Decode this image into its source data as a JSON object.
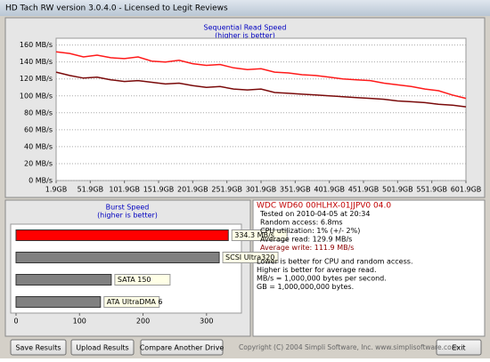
{
  "window": {
    "title": "HD Tach RW version 3.0.4.0 - Licensed to Legit Reviews"
  },
  "chart_data": [
    {
      "type": "line",
      "title": "Sequential Read Speed",
      "subtitle": "(higher is better)",
      "x": [
        1.9,
        21.9,
        41.9,
        61.9,
        81.9,
        101.9,
        121.9,
        141.9,
        161.9,
        181.9,
        201.9,
        221.9,
        241.9,
        261.9,
        281.9,
        301.9,
        321.9,
        341.9,
        361.9,
        381.9,
        401.9,
        421.9,
        441.9,
        461.9,
        481.9,
        501.9,
        521.9,
        541.9,
        561.9,
        581.9,
        601.9
      ],
      "series": [
        {
          "color": "#ff1a1a",
          "values": [
            152,
            150,
            146,
            148,
            145,
            144,
            146,
            141,
            140,
            142,
            138,
            136,
            137,
            133,
            131,
            132,
            128,
            127,
            125,
            124,
            122,
            120,
            119,
            118,
            115,
            113,
            111,
            108,
            106,
            101,
            97
          ]
        },
        {
          "color": "#7a0a0a",
          "values": [
            128,
            124,
            121,
            122,
            119,
            117,
            118,
            116,
            114,
            115,
            112,
            110,
            111,
            108,
            107,
            108,
            104,
            103,
            102,
            101,
            100,
            99,
            98,
            97,
            96,
            94,
            93,
            92,
            90,
            89,
            87
          ]
        }
      ],
      "xlim": [
        1.9,
        601.9
      ],
      "xticks": [
        {
          "value": 1.9,
          "label": "1.9GB"
        },
        {
          "value": 51.9,
          "label": "51.9GB"
        },
        {
          "value": 101.9,
          "label": "101.9GB"
        },
        {
          "value": 151.9,
          "label": "151.9GB"
        },
        {
          "value": 201.9,
          "label": "201.9GB"
        },
        {
          "value": 251.9,
          "label": "251.9GB"
        },
        {
          "value": 301.9,
          "label": "301.9GB"
        },
        {
          "value": 351.9,
          "label": "351.9GB"
        },
        {
          "value": 401.9,
          "label": "401.9GB"
        },
        {
          "value": 451.9,
          "label": "451.9GB"
        },
        {
          "value": 501.9,
          "label": "501.9GB"
        },
        {
          "value": 551.9,
          "label": "551.9GB"
        },
        {
          "value": 601.9,
          "label": "601.9GB"
        }
      ],
      "ylim": [
        0,
        168
      ],
      "yticks": [
        {
          "value": 0,
          "label": "0 MB/s"
        },
        {
          "value": 20,
          "label": "20 MB/s"
        },
        {
          "value": 40,
          "label": "40 MB/s"
        },
        {
          "value": 60,
          "label": "60 MB/s"
        },
        {
          "value": 80,
          "label": "80 MB/s"
        },
        {
          "value": 100,
          "label": "100 MB/s"
        },
        {
          "value": 120,
          "label": "120 MB/s"
        },
        {
          "value": 140,
          "label": "140 MB/s"
        },
        {
          "value": 160,
          "label": "160 MB/s"
        }
      ],
      "grid": true
    },
    {
      "type": "hbar",
      "title": "Burst Speed",
      "subtitle": "(higher is better)",
      "categories": [
        null,
        "SCSI Ultra320",
        "SATA 150",
        "ATA UltraDMA 6"
      ],
      "values": [
        334.3,
        320,
        150,
        133
      ],
      "value_labels": [
        "334.3 MB/s",
        null,
        null,
        null
      ],
      "colors": [
        "#ff0000",
        "#808080",
        "#808080",
        "#808080"
      ],
      "xlim": [
        0,
        355
      ],
      "xticks": [
        0,
        100,
        200,
        300
      ]
    }
  ],
  "info": {
    "drive": "WDC WD60 00HLHX-01JJPV0 04.0",
    "tested": "Tested on 2010-04-05 at 20:34",
    "random_access": "Random access: 6.8ms",
    "cpu": "CPU utilization: 1% (+/- 2%)",
    "average_read": "Average read: 129.9 MB/s",
    "average_write": "Average write: 111.9 MB/s",
    "notes": [
      "Lower is better for CPU and random access.",
      "Higher is better for average read.",
      "MB/s = 1,000,000 bytes per second.",
      "GB = 1,000,000,000 bytes."
    ]
  },
  "buttons": [
    "Save Results",
    "Upload Results",
    "Compare Another Drive",
    "Exit"
  ],
  "copyright": "Copyright (C) 2004 Simpli Software, Inc. www.simplisoftware.com"
}
